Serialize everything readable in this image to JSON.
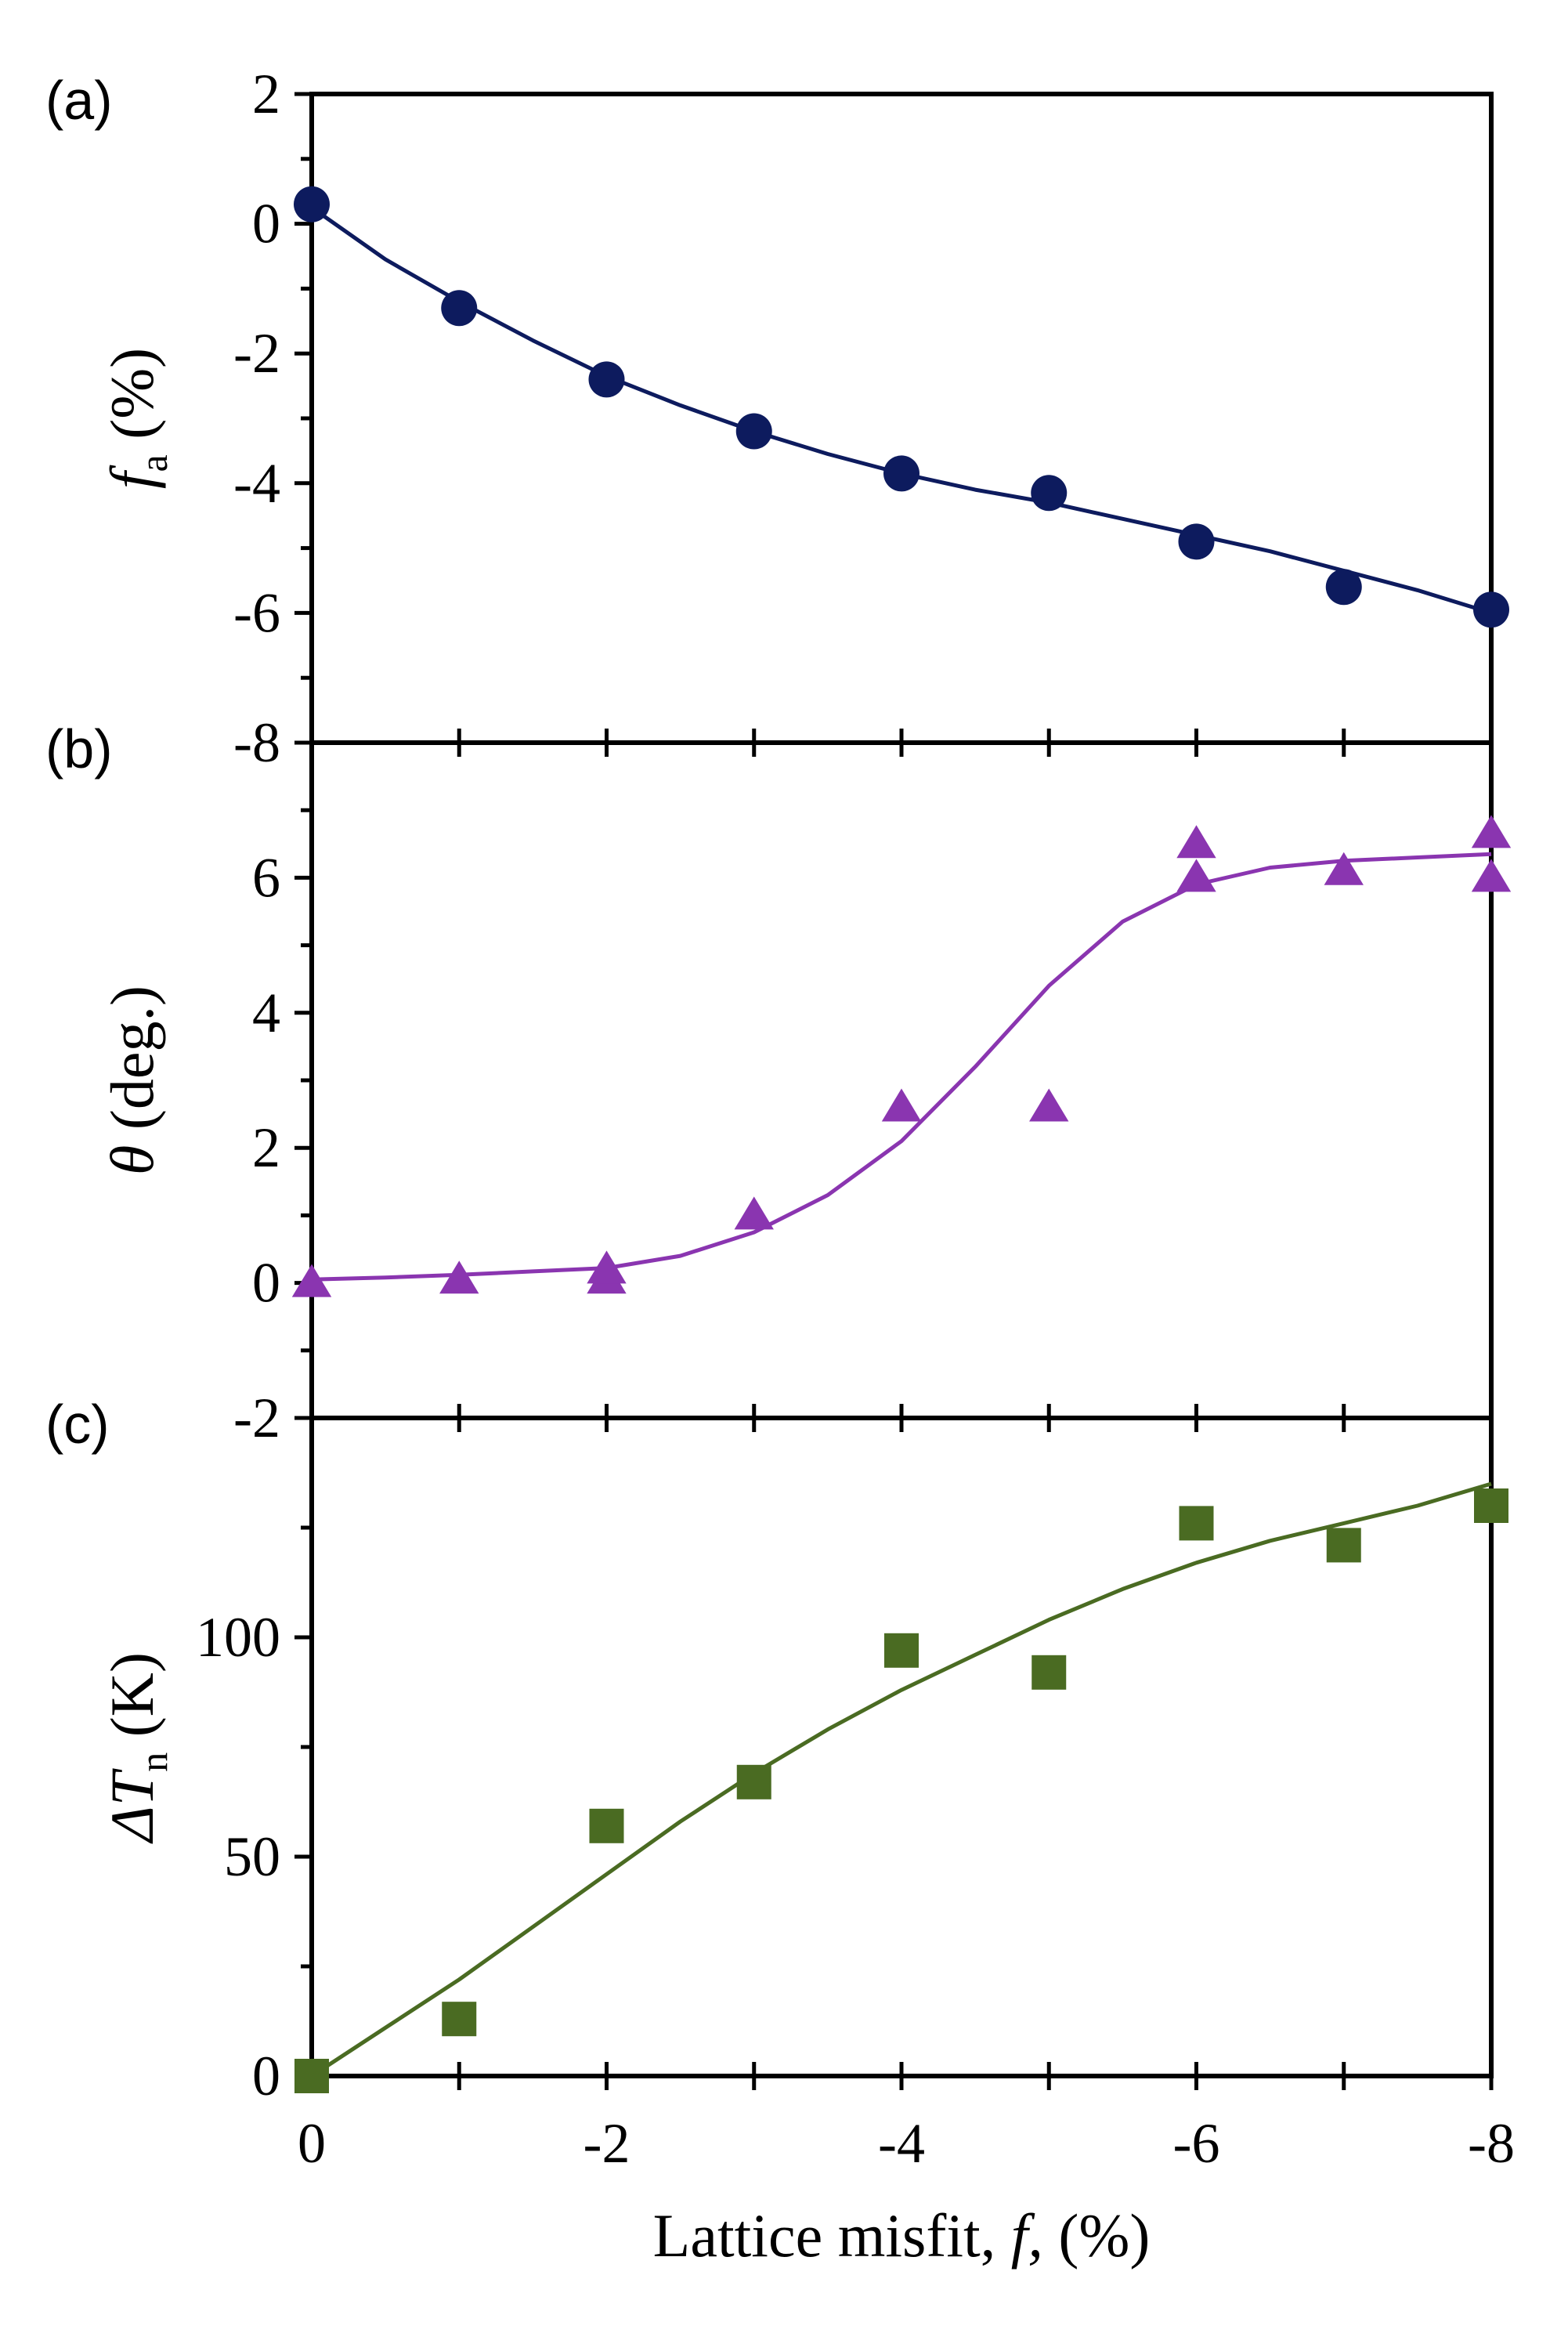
{
  "colors": {
    "axis": "#000000",
    "panel_a": "#0d1b5e",
    "panel_b": "#8a35b0",
    "panel_c": "#4a6b22"
  },
  "chart_data": [
    {
      "id": "a",
      "panel_label": "(a)",
      "type": "scatter",
      "marker": "circle",
      "ylabel_main": "f",
      "ylabel_sub": "a",
      "ylabel_rest": " (%)",
      "ylim": [
        -8,
        2
      ],
      "yticks": [
        -8,
        -6,
        -4,
        -2,
        0,
        2
      ],
      "yticklabels": [
        "-8",
        "-6",
        "-4",
        "-2",
        "0",
        "2"
      ],
      "y_minor_step": 1,
      "x": [
        0,
        -1,
        -2,
        -3,
        -4,
        -5,
        -6,
        -7,
        -8
      ],
      "y": [
        0.3,
        -1.3,
        -2.4,
        -3.2,
        -3.85,
        -4.15,
        -4.9,
        -5.6,
        -5.95
      ],
      "fit_curve": {
        "x": [
          0,
          -0.5,
          -1,
          -1.5,
          -2,
          -2.5,
          -3,
          -3.5,
          -4,
          -4.5,
          -5,
          -5.5,
          -6,
          -6.5,
          -7,
          -7.5,
          -8
        ],
        "y": [
          0.25,
          -0.55,
          -1.2,
          -1.8,
          -2.35,
          -2.8,
          -3.2,
          -3.55,
          -3.85,
          -4.1,
          -4.3,
          -4.55,
          -4.8,
          -5.05,
          -5.35,
          -5.65,
          -6.0
        ]
      }
    },
    {
      "id": "b",
      "panel_label": "(b)",
      "type": "scatter",
      "marker": "triangle",
      "ylabel_main": "θ",
      "ylabel_sub": "",
      "ylabel_rest": " (deg.)",
      "ylim": [
        -2,
        8
      ],
      "yticks": [
        -2,
        0,
        2,
        4,
        6
      ],
      "yticklabels": [
        "-2",
        "0",
        "2",
        "4",
        "6"
      ],
      "y_minor_step": 1,
      "x": [
        0,
        -1,
        -2,
        -2,
        -3,
        -4,
        -5,
        -6,
        -6,
        -7,
        -8,
        -8
      ],
      "y": [
        0,
        0.05,
        0.05,
        0.2,
        1.0,
        2.6,
        2.6,
        6.0,
        6.5,
        6.1,
        6.0,
        6.65
      ],
      "fit_curve": {
        "x": [
          0,
          -0.5,
          -1,
          -1.5,
          -2,
          -2.5,
          -3,
          -3.5,
          -4,
          -4.5,
          -5,
          -5.5,
          -6,
          -6.5,
          -7,
          -7.5,
          -8
        ],
        "y": [
          0.05,
          0.08,
          0.12,
          0.17,
          0.22,
          0.4,
          0.75,
          1.3,
          2.1,
          3.2,
          4.4,
          5.35,
          5.9,
          6.15,
          6.25,
          6.3,
          6.35
        ]
      }
    },
    {
      "id": "c",
      "panel_label": "(c)",
      "type": "scatter",
      "marker": "square",
      "ylabel_main": "ΔT",
      "ylabel_sub": "n",
      "ylabel_rest": " (K)",
      "xlabel": "Lattice misfit, ",
      "xlabel_italic": "f,",
      "xlabel_rest": " (%)",
      "xlim": [
        0,
        -8
      ],
      "xticks": [
        0,
        -2,
        -4,
        -6,
        -8
      ],
      "xticklabels": [
        "0",
        "-2",
        "-4",
        "-6",
        "-8"
      ],
      "x_minor_step": 1,
      "ylim": [
        0,
        150
      ],
      "yticks": [
        0,
        50,
        100
      ],
      "yticklabels": [
        "0",
        "50",
        "100"
      ],
      "y_minor_step": 25,
      "x": [
        0,
        -1,
        -2,
        -3,
        -4,
        -5,
        -6,
        -7,
        -8
      ],
      "y": [
        0,
        13,
        57,
        67,
        97,
        92,
        126,
        121,
        130
      ],
      "fit_curve": {
        "x": [
          0,
          -0.5,
          -1,
          -1.5,
          -2,
          -2.5,
          -3,
          -3.5,
          -4,
          -4.5,
          -5,
          -5.5,
          -6,
          -6.5,
          -7,
          -7.5,
          -8
        ],
        "y": [
          0,
          11,
          22,
          34,
          46,
          58,
          69,
          79,
          88,
          96,
          104,
          111,
          117,
          122,
          126,
          130,
          135
        ]
      }
    }
  ]
}
